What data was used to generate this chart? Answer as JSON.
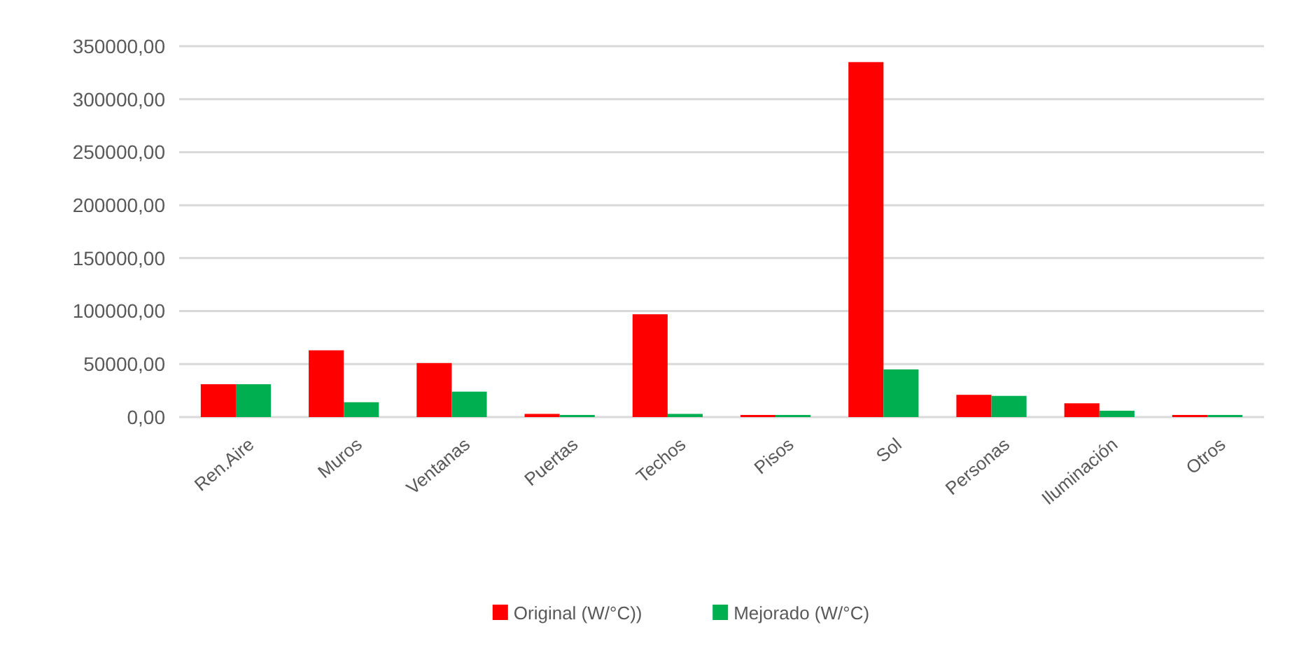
{
  "chart_data": {
    "type": "bar",
    "categories": [
      "Ren.Aire",
      "Muros",
      "Ventanas",
      "Puertas",
      "Techos",
      "Pisos",
      "Sol",
      "Personas",
      "Iluminación",
      "Otros"
    ],
    "series": [
      {
        "name": "Original (W/°C))",
        "color": "#ff0000",
        "values": [
          31000,
          63000,
          51000,
          3000,
          97000,
          2000,
          335000,
          21000,
          13000,
          2000
        ]
      },
      {
        "name": "Mejorado (W/°C)",
        "color": "#00b050",
        "values": [
          31000,
          14000,
          24000,
          2000,
          3000,
          2000,
          45000,
          20000,
          6000,
          2000
        ]
      }
    ],
    "ylim": [
      0,
      350000
    ],
    "yticks": [
      {
        "value": 0,
        "label": "0,00"
      },
      {
        "value": 50000,
        "label": "50000,00"
      },
      {
        "value": 100000,
        "label": "100000,00"
      },
      {
        "value": 150000,
        "label": "150000,00"
      },
      {
        "value": 200000,
        "label": "200000,00"
      },
      {
        "value": 250000,
        "label": "250000,00"
      },
      {
        "value": 300000,
        "label": "300000,00"
      },
      {
        "value": 350000,
        "label": "350000,00"
      }
    ],
    "grid": "y",
    "legend": "bottom"
  }
}
